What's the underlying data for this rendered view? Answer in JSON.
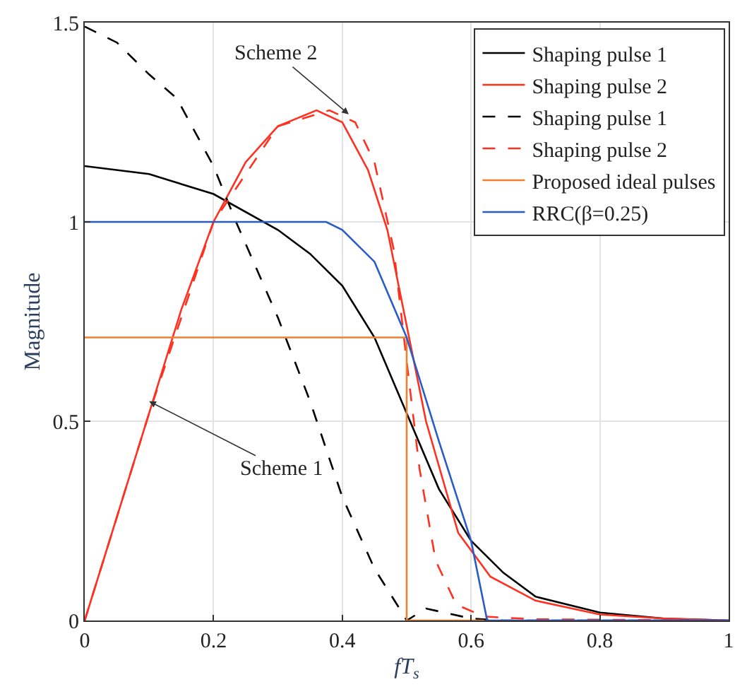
{
  "chart_data": {
    "type": "line",
    "xlabel": "fT$_{s}$",
    "ylabel": "Magnitude",
    "xlim": [
      0,
      1
    ],
    "ylim": [
      0,
      1.5
    ],
    "xticks": [
      0,
      0.2,
      0.4,
      0.6,
      0.8,
      1
    ],
    "yticks": [
      0,
      0.5,
      1,
      1.5
    ],
    "grid": true,
    "legend": "top right",
    "marker": "none",
    "series": [
      {
        "name": "Shaping pulse 1",
        "color": "#000000",
        "line_style": "solid",
        "x": [
          0,
          0.1,
          0.2,
          0.3,
          0.35,
          0.4,
          0.45,
          0.5,
          0.55,
          0.6,
          0.65,
          0.7,
          0.8,
          0.9,
          1
        ],
        "values": [
          1.14,
          1.12,
          1.07,
          0.98,
          0.92,
          0.84,
          0.71,
          0.52,
          0.33,
          0.2,
          0.12,
          0.06,
          0.02,
          0.005,
          0
        ]
      },
      {
        "name": "Shaping pulse 2",
        "color": "#ff3020",
        "line_style": "solid",
        "x": [
          0,
          0.05,
          0.1,
          0.15,
          0.2,
          0.25,
          0.3,
          0.36,
          0.4,
          0.44,
          0.47,
          0.5,
          0.53,
          0.58,
          0.63,
          0.7,
          0.8,
          0.9,
          1
        ],
        "values": [
          0,
          0.26,
          0.52,
          0.78,
          1.0,
          1.15,
          1.24,
          1.28,
          1.25,
          1.13,
          0.98,
          0.74,
          0.5,
          0.22,
          0.11,
          0.05,
          0.015,
          0.005,
          0
        ]
      },
      {
        "name": "Shaping pulse 1",
        "color": "#000000",
        "line_style": "dashed",
        "x": [
          0,
          0.05,
          0.1,
          0.143,
          0.2,
          0.235,
          0.3,
          0.35,
          0.4,
          0.45,
          0.485,
          0.5,
          0.53,
          0.6,
          0.65,
          1
        ],
        "values": [
          1.49,
          1.45,
          1.37,
          1.31,
          1.14,
          1.0,
          0.76,
          0.55,
          0.31,
          0.13,
          0.04,
          0,
          0.03,
          0.005,
          0,
          0
        ]
      },
      {
        "name": "Shaping pulse 2",
        "color": "#ff3020",
        "line_style": "dashed",
        "x": [
          0,
          0.1,
          0.2,
          0.3,
          0.38,
          0.42,
          0.45,
          0.48,
          0.5,
          0.52,
          0.545,
          0.577,
          0.62,
          0.7,
          1
        ],
        "values": [
          0,
          0.52,
          1.0,
          1.24,
          1.28,
          1.25,
          1.15,
          0.93,
          0.65,
          0.38,
          0.15,
          0.04,
          0.01,
          0.003,
          0
        ]
      },
      {
        "name": "Proposed ideal pulses",
        "color": "#ee8030",
        "line_style": "solid",
        "x": [
          0,
          0.5,
          0.5,
          0.62
        ],
        "values": [
          0.71,
          0.71,
          0,
          0
        ]
      },
      {
        "name": "RRC(β=0.25)",
        "color": "#2a5cc8",
        "line_style": "solid",
        "x": [
          0,
          0.375,
          0.4,
          0.45,
          0.5,
          0.55,
          0.6,
          0.625,
          1
        ],
        "values": [
          1,
          1,
          0.98,
          0.9,
          0.71,
          0.45,
          0.2,
          0,
          0
        ]
      }
    ],
    "annotations": [
      {
        "text": "Scheme 2",
        "x": 0.41,
        "y": 1.27
      },
      {
        "text": "Scheme 1",
        "x": 0.1,
        "y": 0.55
      }
    ]
  }
}
